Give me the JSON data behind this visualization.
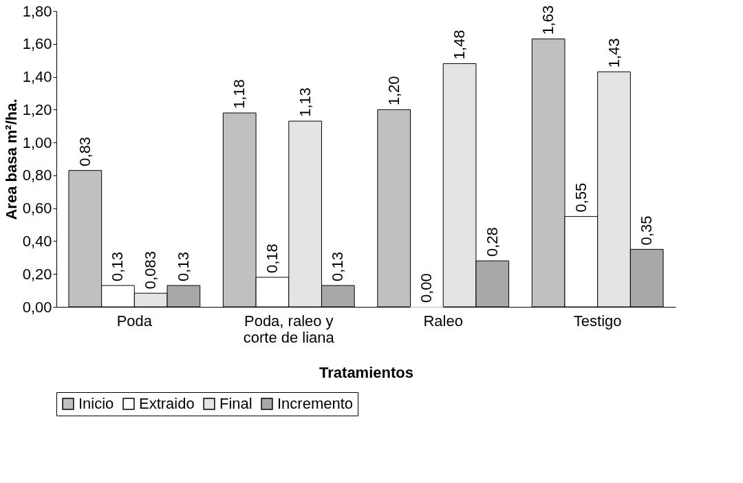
{
  "chart_data": {
    "type": "bar",
    "xlabel": "Tratamientos",
    "ylabel": "Area basa m²/ha.",
    "categories": [
      "Poda",
      "Poda, raleo y corte de liana",
      "Raleo",
      "Testigo"
    ],
    "series": [
      {
        "name": "Inicio",
        "color": "#c0c0c0",
        "values": [
          0.83,
          1.18,
          1.2,
          1.63
        ],
        "value_labels": [
          "0,83",
          "1,18",
          "1,20",
          "1,63"
        ]
      },
      {
        "name": "Extraido",
        "color": "#ffffff",
        "values": [
          0.13,
          0.18,
          0.0,
          0.55
        ],
        "value_labels": [
          "0,13",
          "0,18",
          "0,00",
          "0,55"
        ]
      },
      {
        "name": "Final",
        "color": "#e4e4e4",
        "values": [
          0.083,
          1.13,
          1.48,
          1.43
        ],
        "value_labels": [
          "0,083",
          "1,13",
          "1,48",
          "1,43"
        ]
      },
      {
        "name": "Incremento",
        "color": "#a8a8a8",
        "values": [
          0.13,
          0.13,
          0.28,
          0.35
        ],
        "value_labels": [
          "0,13",
          "0,13",
          "0,28",
          "0,35"
        ]
      }
    ],
    "ylim": [
      0,
      1.8
    ],
    "yticks": [
      {
        "value": 0,
        "label": "0,00"
      },
      {
        "value": 0.2,
        "label": "0,20"
      },
      {
        "value": 0.4,
        "label": "0,40"
      },
      {
        "value": 0.6,
        "label": "0,60"
      },
      {
        "value": 0.8,
        "label": "0,80"
      },
      {
        "value": 1.0,
        "label": "1,00"
      },
      {
        "value": 1.2,
        "label": "1,20"
      },
      {
        "value": 1.4,
        "label": "1,40"
      },
      {
        "value": 1.6,
        "label": "1,60"
      },
      {
        "value": 1.8,
        "label": "1,80"
      }
    ],
    "grid": false,
    "legend": "bottom"
  }
}
